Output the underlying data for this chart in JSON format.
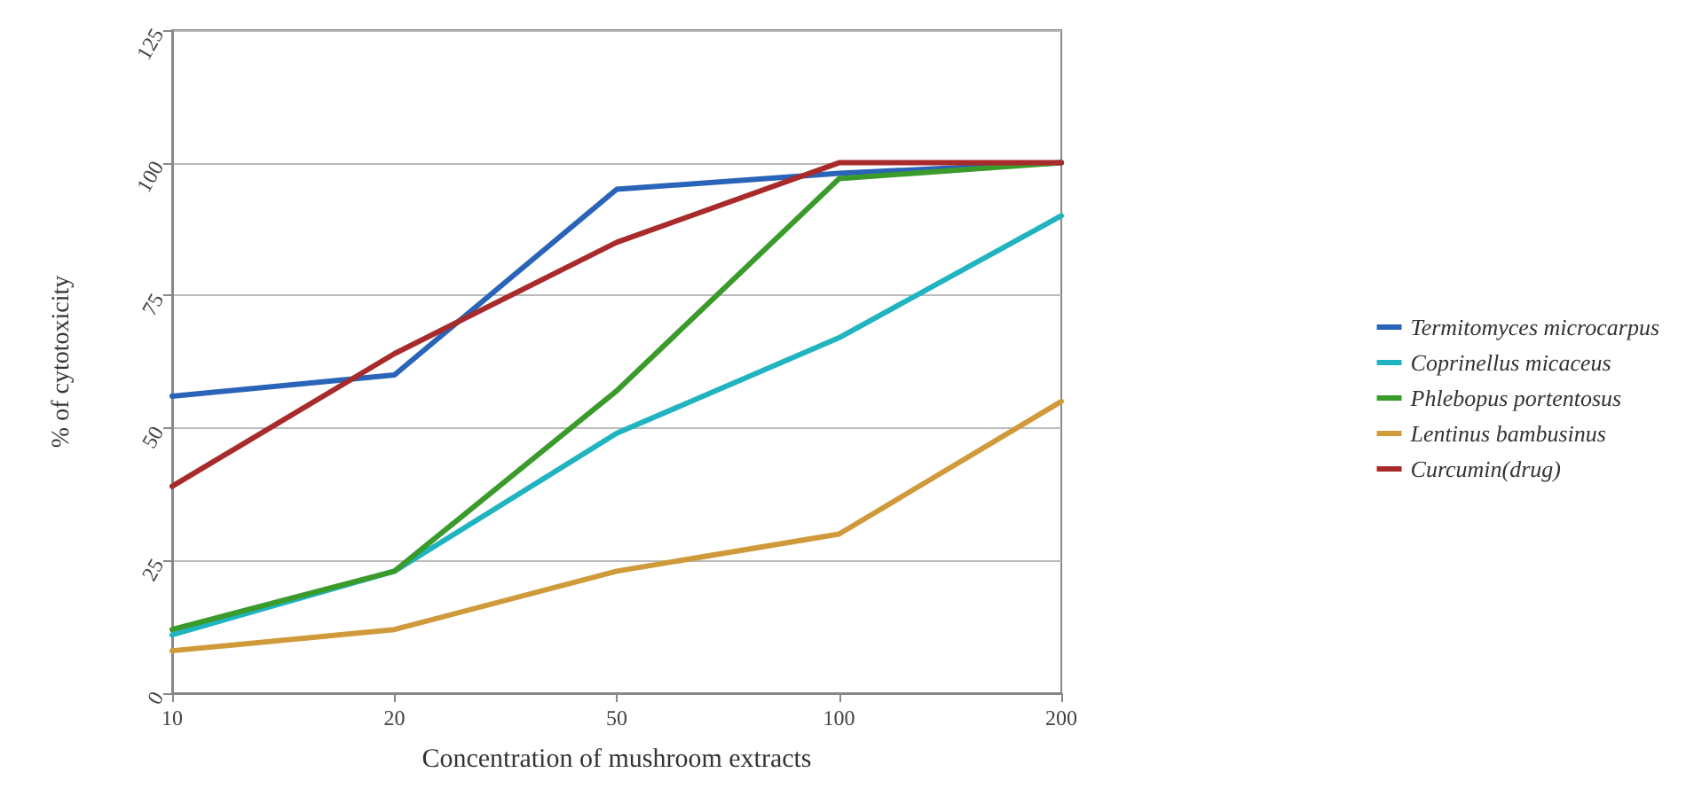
{
  "chart_data": {
    "type": "line",
    "xlabel": "Concentration of mushroom extracts",
    "ylabel": "% of cytotoxicity",
    "categories": [
      "10",
      "20",
      "50",
      "100",
      "200"
    ],
    "series": [
      {
        "name": "Termitomyces microcarpus",
        "color": "#2a64b8",
        "values": [
          56,
          60,
          95,
          98,
          100
        ]
      },
      {
        "name": "Coprinellus micaceus",
        "color": "#20b4c0",
        "values": [
          11,
          23,
          49,
          67,
          90
        ]
      },
      {
        "name": "Phlebopus portentosus",
        "color": "#3a9a2a",
        "values": [
          12,
          23,
          57,
          97,
          100
        ]
      },
      {
        "name": "Lentinus bambusinus",
        "color": "#d09a3a",
        "values": [
          8,
          12,
          23,
          30,
          55
        ]
      },
      {
        "name": "Curcumin(drug)",
        "color": "#a82a2a",
        "values": [
          39,
          64,
          85,
          100,
          100
        ]
      }
    ],
    "ylim": [
      0,
      125
    ],
    "yticks": [
      0,
      25,
      50,
      75,
      100,
      125
    ],
    "grid": "y",
    "legend": "right",
    "marker": "none",
    "line_style": "solid"
  }
}
